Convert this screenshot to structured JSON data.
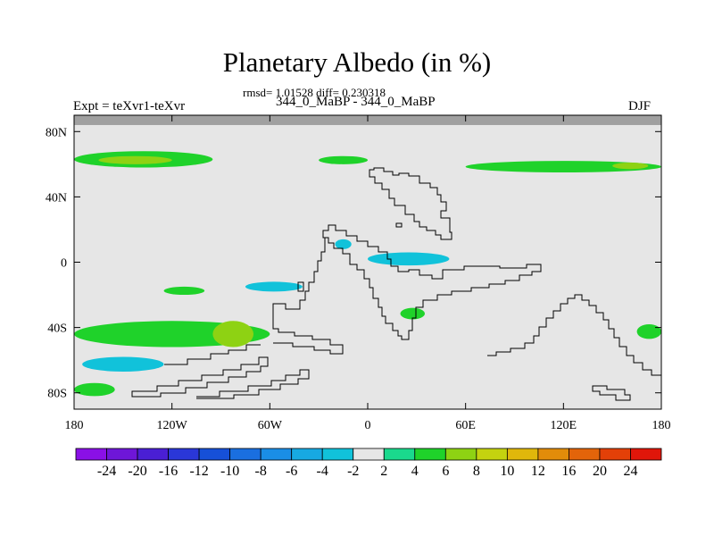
{
  "title": "Planetary Albedo (in %)",
  "stats": "rmsd= 1.01528 diff= 0.230318",
  "subtitle": "344_0_MaBP - 344_0_MaBP",
  "left_label": "Expt = teXvr1-teXvr",
  "right_label": "DJF",
  "chart_data": {
    "type": "heatmap",
    "title": "Planetary Albedo (in %)",
    "subtitle": "344_0_MaBP - 344_0_MaBP",
    "stats": {
      "rmsd": 1.01528,
      "diff": 0.230318
    },
    "experiment": "teXvr1-teXvr",
    "season": "DJF",
    "projection": "cylindrical equidistant",
    "xlim": [
      -180,
      180
    ],
    "ylim": [
      -90,
      90
    ],
    "x_ticks": [
      -180,
      -120,
      -60,
      0,
      60,
      120,
      180
    ],
    "x_tick_labels": [
      "180",
      "120W",
      "60W",
      "0",
      "60E",
      "120E",
      "180"
    ],
    "y_ticks": [
      80,
      40,
      0,
      -40,
      -80
    ],
    "y_tick_labels": [
      "80N",
      "40N",
      "0",
      "40S",
      "80S"
    ],
    "contour_levels": [
      -24,
      -20,
      -16,
      -12,
      -10,
      -8,
      -6,
      -4,
      -2,
      2,
      4,
      6,
      8,
      10,
      12,
      16,
      20,
      24
    ],
    "colorbar_colors": [
      "#8a10e6",
      "#6e16d8",
      "#4a1fd4",
      "#2a37d8",
      "#1650d8",
      "#1a6fe0",
      "#1a8ee6",
      "#17a9e2",
      "#11c2da",
      "#e6e6e6",
      "#1ad98d",
      "#1fd22a",
      "#8ed213",
      "#c4d20f",
      "#e0b70b",
      "#e28c0a",
      "#e3640a",
      "#e34008",
      "#e0160a"
    ],
    "missing_color": "#a0a0a0",
    "background_color": "#e6e6e6",
    "anomaly_regions": [
      {
        "value": 4,
        "lon": [
          -180,
          -95
        ],
        "lat": [
          58,
          68
        ]
      },
      {
        "value": 6,
        "lon": [
          -165,
          -120
        ],
        "lat": [
          60,
          65
        ]
      },
      {
        "value": 4,
        "lon": [
          -30,
          0
        ],
        "lat": [
          60,
          65
        ]
      },
      {
        "value": 4,
        "lon": [
          60,
          180
        ],
        "lat": [
          55,
          62
        ]
      },
      {
        "value": 6,
        "lon": [
          150,
          172
        ],
        "lat": [
          57,
          61
        ]
      },
      {
        "value": -4,
        "lon": [
          0,
          50
        ],
        "lat": [
          -2,
          6
        ]
      },
      {
        "value": -4,
        "lon": [
          -20,
          -10
        ],
        "lat": [
          8,
          14
        ]
      },
      {
        "value": -4,
        "lon": [
          -75,
          -40
        ],
        "lat": [
          -18,
          -12
        ]
      },
      {
        "value": 4,
        "lon": [
          -125,
          -100
        ],
        "lat": [
          -20,
          -15
        ]
      },
      {
        "value": 4,
        "lon": [
          -180,
          -60
        ],
        "lat": [
          -52,
          -36
        ]
      },
      {
        "value": 6,
        "lon": [
          -95,
          -70
        ],
        "lat": [
          -52,
          -36
        ]
      },
      {
        "value": -4,
        "lon": [
          -175,
          -125
        ],
        "lat": [
          -67,
          -58
        ]
      },
      {
        "value": 4,
        "lon": [
          -180,
          -155
        ],
        "lat": [
          -82,
          -74
        ]
      },
      {
        "value": 4,
        "lon": [
          20,
          35
        ],
        "lat": [
          -35,
          -28
        ]
      },
      {
        "value": 4,
        "lon": [
          165,
          180
        ],
        "lat": [
          -47,
          -38
        ]
      }
    ]
  },
  "colorbar_labels": [
    "-24",
    "-20",
    "-16",
    "-12",
    "-10",
    "-8",
    "-6",
    "-4",
    "-2",
    "2",
    "4",
    "6",
    "8",
    "10",
    "12",
    "16",
    "20",
    "24"
  ]
}
